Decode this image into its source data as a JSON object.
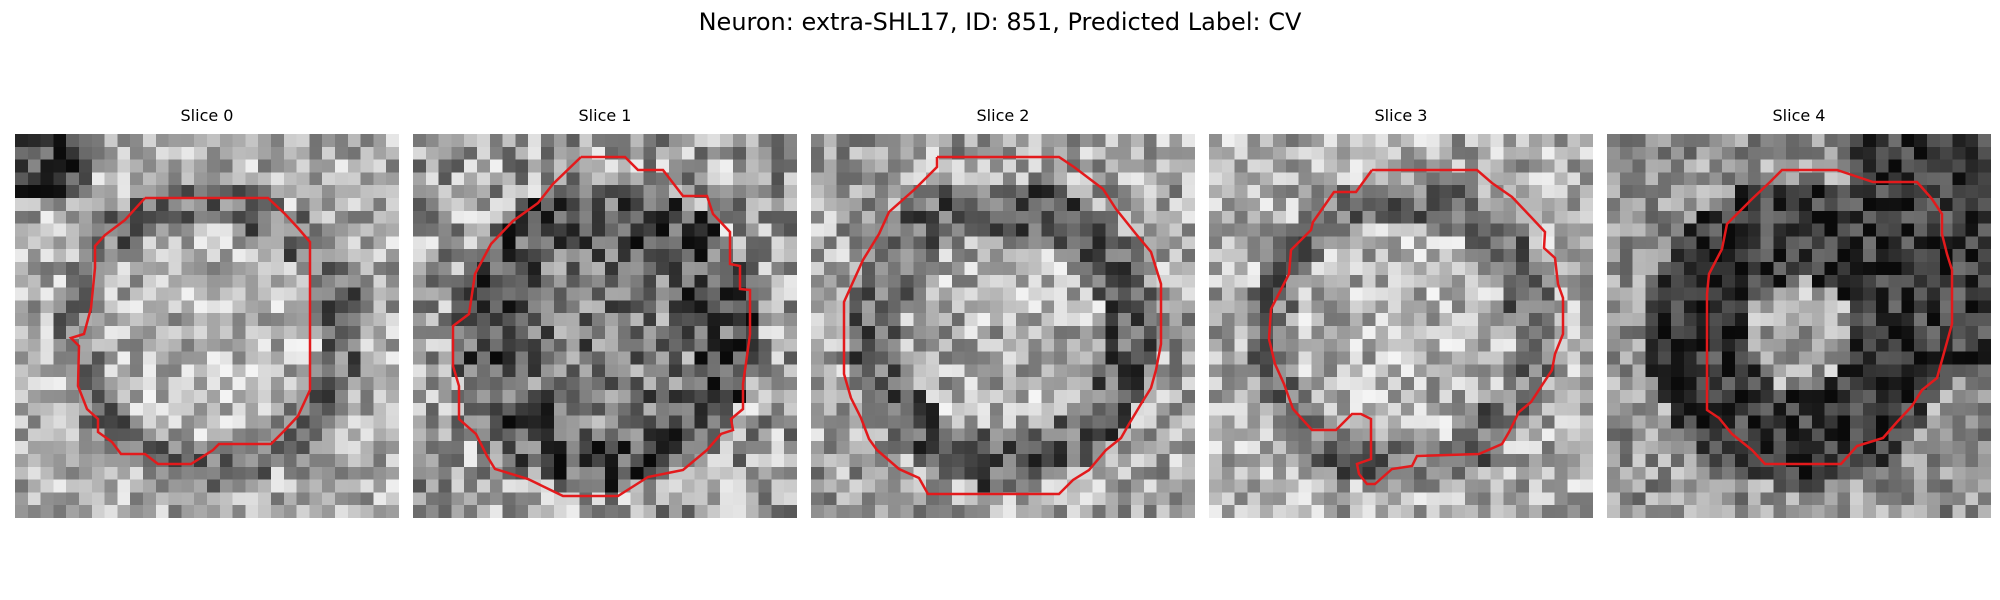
{
  "figure": {
    "title": "Neuron: extra-SHL17, ID: 851, Predicted Label: CV",
    "contour_color": "#e31a1c",
    "colormap": "gray",
    "panels": [
      {
        "label": "Slice 0",
        "seed": 11,
        "center_shade": "light",
        "ring": "dark-thin"
      },
      {
        "label": "Slice 1",
        "seed": 23,
        "center_shade": "dark-mottled",
        "ring": "dark"
      },
      {
        "label": "Slice 2",
        "seed": 37,
        "center_shade": "light",
        "ring": "dark"
      },
      {
        "label": "Slice 3",
        "seed": 41,
        "center_shade": "light",
        "ring": "dark-thin"
      },
      {
        "label": "Slice 4",
        "seed": 53,
        "center_shade": "light",
        "ring": "dark-thick"
      }
    ]
  }
}
